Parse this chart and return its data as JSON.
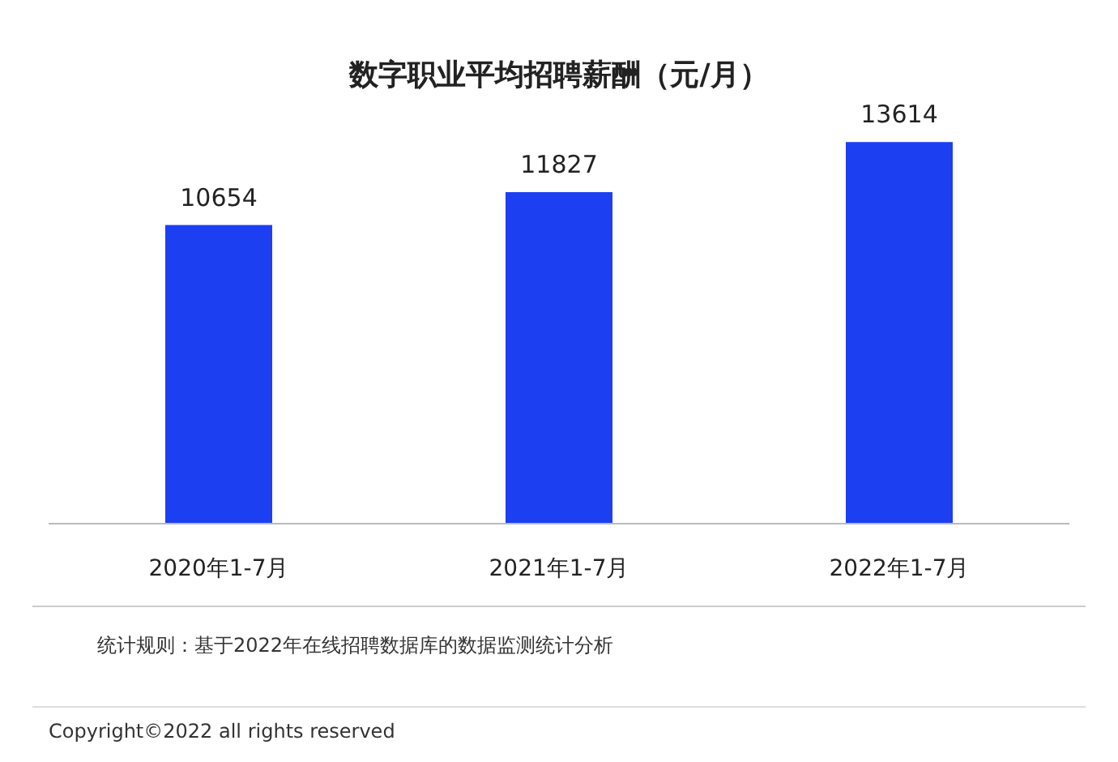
{
  "chart_data": {
    "type": "bar",
    "title": "数字职业平均招聘薪酬（元/月）",
    "categories": [
      "2020年1-7月",
      "2021年1-7月",
      "2022年1-7月"
    ],
    "series": [
      {
        "color": "#1c3ff2",
        "values": [
          10654,
          11827,
          13614
        ]
      }
    ],
    "data_labels": true,
    "annotations": [
      "统计规则：基于2022年在线招聘数据库的数据监测统计分析",
      "Copyright©2022 all rights reserved"
    ]
  }
}
